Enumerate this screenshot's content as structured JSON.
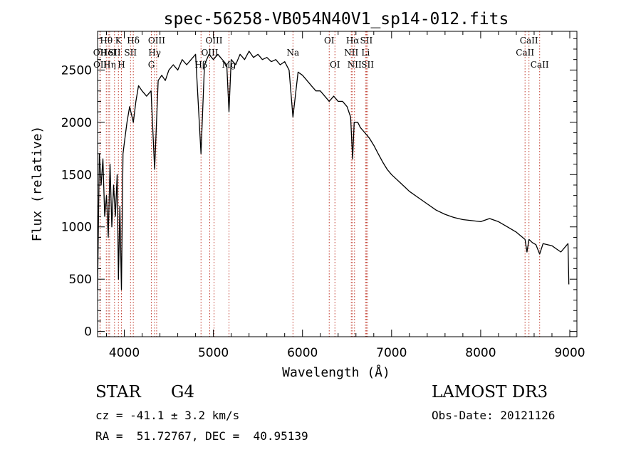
{
  "chart_data": {
    "type": "line",
    "title": "spec-56258-VB054N40V1_sp14-012.fits",
    "xlabel": "Wavelength (Å)",
    "ylabel": "Flux (relative)",
    "xlim": [
      3700,
      9080
    ],
    "ylim": [
      -50,
      2870
    ],
    "xticks": [
      4000,
      5000,
      6000,
      7000,
      8000,
      9000
    ],
    "yticks": [
      0,
      500,
      1000,
      1500,
      2000,
      2500
    ],
    "grid": false,
    "series": [
      {
        "name": "flux",
        "x": [
          3700,
          3720,
          3740,
          3760,
          3780,
          3800,
          3820,
          3840,
          3860,
          3880,
          3900,
          3920,
          3934,
          3950,
          3968,
          3985,
          4000,
          4030,
          4060,
          4101,
          4130,
          4160,
          4200,
          4250,
          4300,
          4340,
          4380,
          4420,
          4460,
          4500,
          4550,
          4600,
          4650,
          4700,
          4750,
          4800,
          4861,
          4900,
          4950,
          5000,
          5050,
          5100,
          5150,
          5175,
          5200,
          5250,
          5300,
          5350,
          5400,
          5450,
          5500,
          5550,
          5600,
          5650,
          5700,
          5750,
          5800,
          5850,
          5893,
          5950,
          6000,
          6050,
          6100,
          6150,
          6200,
          6250,
          6300,
          6350,
          6400,
          6450,
          6500,
          6540,
          6563,
          6580,
          6620,
          6650,
          6700,
          6750,
          6800,
          6850,
          6900,
          6950,
          7000,
          7050,
          7100,
          7150,
          7200,
          7300,
          7400,
          7500,
          7600,
          7700,
          7800,
          7900,
          8000,
          8100,
          8200,
          8300,
          8400,
          8498,
          8520,
          8542,
          8580,
          8620,
          8662,
          8700,
          8750,
          8800,
          8850,
          8900,
          8950,
          8980,
          8990
        ],
        "values": [
          400,
          1700,
          1400,
          1650,
          1100,
          1300,
          900,
          1600,
          1000,
          1400,
          1100,
          1500,
          500,
          1200,
          400,
          1700,
          1800,
          2000,
          2150,
          2000,
          2200,
          2350,
          2300,
          2250,
          2300,
          1550,
          2400,
          2450,
          2400,
          2500,
          2550,
          2500,
          2600,
          2550,
          2600,
          2650,
          1700,
          2550,
          2650,
          2600,
          2650,
          2600,
          2550,
          2100,
          2600,
          2550,
          2650,
          2600,
          2680,
          2620,
          2650,
          2600,
          2620,
          2580,
          2600,
          2550,
          2580,
          2500,
          2050,
          2480,
          2450,
          2400,
          2350,
          2300,
          2300,
          2250,
          2200,
          2250,
          2200,
          2200,
          2150,
          2050,
          1650,
          2000,
          2000,
          1950,
          1900,
          1850,
          1780,
          1700,
          1620,
          1550,
          1500,
          1460,
          1420,
          1380,
          1340,
          1280,
          1220,
          1160,
          1120,
          1090,
          1070,
          1060,
          1050,
          1080,
          1050,
          1000,
          950,
          880,
          760,
          880,
          850,
          830,
          740,
          840,
          830,
          820,
          790,
          760,
          810,
          840,
          450
        ]
      }
    ],
    "lines": [
      {
        "label": "Hθ",
        "x": 3798,
        "row": 1
      },
      {
        "label": "OII",
        "x": 3727,
        "row": 2
      },
      {
        "label": "OII",
        "x": 3729,
        "row": 3
      },
      {
        "label": "HeI",
        "x": 3820,
        "row": 2
      },
      {
        "label": "Hη",
        "x": 3835,
        "row": 3
      },
      {
        "label": "SII",
        "x": 3890,
        "row": 2
      },
      {
        "label": "K",
        "x": 3934,
        "row": 1
      },
      {
        "label": "H",
        "x": 3968,
        "row": 3
      },
      {
        "label": "Hδ",
        "x": 4101,
        "row": 1
      },
      {
        "label": "SII",
        "x": 4070,
        "row": 2
      },
      {
        "label": "OIII",
        "x": 4363,
        "row": 1
      },
      {
        "label": "Hγ",
        "x": 4340,
        "row": 2
      },
      {
        "label": "G",
        "x": 4304,
        "row": 3
      },
      {
        "label": "OIII",
        "x": 5007,
        "row": 1
      },
      {
        "label": "OIII",
        "x": 4959,
        "row": 2
      },
      {
        "label": "Hβ",
        "x": 4861,
        "row": 3
      },
      {
        "label": "Mg",
        "x": 5175,
        "row": 3
      },
      {
        "label": "Na",
        "x": 5893,
        "row": 2
      },
      {
        "label": "OI",
        "x": 6300,
        "row": 1
      },
      {
        "label": "OI",
        "x": 6364,
        "row": 3
      },
      {
        "label": "Hα",
        "x": 6563,
        "row": 1
      },
      {
        "label": "NII",
        "x": 6548,
        "row": 2
      },
      {
        "label": "NII",
        "x": 6584,
        "row": 3
      },
      {
        "label": "SII",
        "x": 6717,
        "row": 1
      },
      {
        "label": "Li",
        "x": 6708,
        "row": 2
      },
      {
        "label": "SII",
        "x": 6731,
        "row": 3
      },
      {
        "label": "CaII",
        "x": 8542,
        "row": 1
      },
      {
        "label": "CaII",
        "x": 8498,
        "row": 2
      },
      {
        "label": "CaII",
        "x": 8662,
        "row": 3
      }
    ]
  },
  "info": {
    "object_class": "STAR",
    "subclass": "G4",
    "survey": "LAMOST DR3",
    "redshift": "cz = -41.1 ± 3.2 km/s",
    "obs_date": "Obs-Date: 20121126",
    "coords": "RA =  51.72767, DEC =  40.95139"
  }
}
